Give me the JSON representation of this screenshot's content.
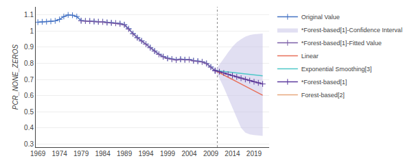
{
  "chart_data": {
    "type": "line",
    "ylabel": "PCR_NONE_ZEROS",
    "xlim": [
      1968.5,
      2022.5
    ],
    "xticks": [
      1969,
      1974,
      1979,
      1984,
      1989,
      1994,
      1999,
      2004,
      2009,
      2014,
      2019
    ],
    "ylim": [
      0.28,
      1.15
    ],
    "yticks": [
      0.3,
      0.4,
      0.5,
      0.6,
      0.7,
      0.8,
      0.9,
      1,
      1.1
    ],
    "grid": "y",
    "legend": "right",
    "vline": {
      "x": 2010.5,
      "color": "#888888",
      "line_style": "dotted"
    },
    "series": [
      {
        "name": "Original Value",
        "type": "line",
        "color": "#4472C4",
        "marker": "plus",
        "x": [
          1969,
          1970,
          1971,
          1972,
          1973,
          1974,
          1975,
          1976,
          1977,
          1978,
          1979,
          1980,
          1981,
          1982,
          1983,
          1984,
          1985,
          1986,
          1987,
          1988,
          1989,
          1990,
          1991,
          1992,
          1993,
          1994,
          1995,
          1996,
          1997,
          1998,
          1999,
          2000,
          2001,
          2002,
          2003,
          2004,
          2005,
          2006,
          2007,
          2008,
          2009,
          2010
        ],
        "values": [
          1.055,
          1.057,
          1.058,
          1.06,
          1.063,
          1.072,
          1.09,
          1.1,
          1.098,
          1.09,
          1.065,
          1.063,
          1.063,
          1.06,
          1.058,
          1.058,
          1.054,
          1.052,
          1.05,
          1.047,
          1.04,
          1.015,
          0.985,
          0.96,
          0.94,
          0.92,
          0.898,
          0.877,
          0.857,
          0.842,
          0.832,
          0.827,
          0.822,
          0.826,
          0.823,
          0.824,
          0.817,
          0.814,
          0.81,
          0.8,
          0.778,
          0.755
        ]
      },
      {
        "name": "*Forest-based[1]-Confidence Interval",
        "type": "area",
        "color": "#C8C4E8",
        "x": [
          2010,
          2011,
          2012,
          2013,
          2014,
          2015,
          2016,
          2017,
          2018,
          2019,
          2020,
          2021
        ],
        "upper": [
          0.755,
          0.79,
          0.83,
          0.868,
          0.903,
          0.93,
          0.95,
          0.965,
          0.975,
          0.98,
          0.983,
          0.985
        ],
        "lower": [
          0.755,
          0.706,
          0.65,
          0.59,
          0.528,
          0.464,
          0.4,
          0.37,
          0.36,
          0.355,
          0.352,
          0.35
        ]
      },
      {
        "name": "*Forest-based[1]-Fitted Value",
        "type": "line",
        "color": "#7B5EA7",
        "marker": "plus",
        "x": [
          1979,
          1980,
          1981,
          1982,
          1983,
          1984,
          1985,
          1986,
          1987,
          1988,
          1989,
          1990,
          1991,
          1992,
          1993,
          1994,
          1995,
          1996,
          1997,
          1998,
          1999,
          2000,
          2001,
          2002,
          2003,
          2004,
          2005,
          2006,
          2007,
          2008,
          2009,
          2010
        ],
        "values": [
          1.063,
          1.062,
          1.061,
          1.059,
          1.057,
          1.056,
          1.052,
          1.05,
          1.048,
          1.044,
          1.038,
          1.012,
          0.982,
          0.958,
          0.938,
          0.918,
          0.896,
          0.875,
          0.855,
          0.84,
          0.83,
          0.825,
          0.82,
          0.824,
          0.821,
          0.822,
          0.815,
          0.812,
          0.808,
          0.798,
          0.776,
          0.753
        ]
      },
      {
        "name": "Linear",
        "type": "line",
        "color": "#E8705A",
        "x": [
          2010,
          2011,
          2012,
          2013,
          2014,
          2015,
          2016,
          2017,
          2018,
          2019,
          2020,
          2021
        ],
        "values": [
          0.755,
          0.742,
          0.728,
          0.714,
          0.7,
          0.686,
          0.672,
          0.658,
          0.644,
          0.63,
          0.616,
          0.602
        ]
      },
      {
        "name": "Exponential Smoothing[3]",
        "type": "line",
        "color": "#4DC8C8",
        "x": [
          2010,
          2011,
          2012,
          2013,
          2014,
          2015,
          2016,
          2017,
          2018,
          2019,
          2020,
          2021
        ],
        "values": [
          0.755,
          0.752,
          0.749,
          0.746,
          0.743,
          0.74,
          0.737,
          0.734,
          0.731,
          0.728,
          0.725,
          0.722
        ]
      },
      {
        "name": "*Forest-based[1]",
        "type": "line",
        "color": "#5B3A9E",
        "marker": "plus",
        "x": [
          2010,
          2011,
          2012,
          2013,
          2014,
          2015,
          2016,
          2017,
          2018,
          2019,
          2020,
          2021
        ],
        "values": [
          0.755,
          0.748,
          0.74,
          0.732,
          0.724,
          0.716,
          0.708,
          0.7,
          0.693,
          0.686,
          0.679,
          0.672
        ]
      },
      {
        "name": "Forest-based[2]",
        "type": "line",
        "color": "#E8A87C",
        "x": [
          2010,
          2011,
          2012,
          2013,
          2014,
          2015,
          2016,
          2017,
          2018,
          2019,
          2020,
          2021
        ],
        "values": [
          0.755,
          0.748,
          0.74,
          0.732,
          0.724,
          0.716,
          0.708,
          0.7,
          0.693,
          0.686,
          0.679,
          0.672
        ]
      }
    ]
  }
}
